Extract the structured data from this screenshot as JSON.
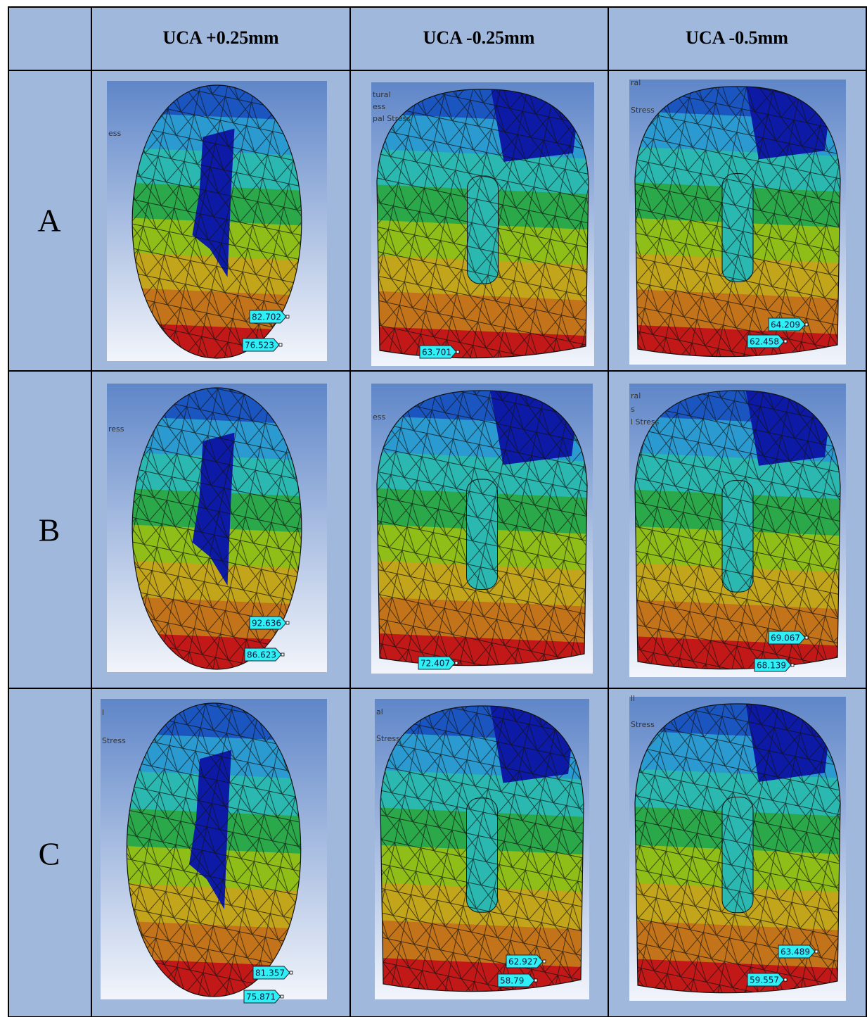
{
  "header": {
    "columns": [
      "UCA +0.25mm",
      "UCA -0.25mm",
      "UCA -0.5mm"
    ]
  },
  "rows": [
    {
      "label": "A",
      "cells": [
        {
          "legend": [
            "ess"
          ],
          "labels": [
            "82.702",
            "76.523"
          ]
        },
        {
          "legend": [
            "tural",
            "ess",
            "pal Stress"
          ],
          "labels": [
            "63.701"
          ]
        },
        {
          "legend": [
            "ral",
            "Stress"
          ],
          "labels": [
            "64.209",
            "62.458"
          ]
        }
      ]
    },
    {
      "label": "B",
      "cells": [
        {
          "legend": [
            "ress"
          ],
          "labels": [
            "92.636",
            "86.623"
          ]
        },
        {
          "legend": [
            "ess"
          ],
          "labels": [
            "72.407"
          ]
        },
        {
          "legend": [
            "ral",
            "s",
            "l Stress"
          ],
          "labels": [
            "69.067",
            "68.139"
          ]
        }
      ]
    },
    {
      "label": "C",
      "cells": [
        {
          "legend": [
            "l",
            "Stress"
          ],
          "labels": [
            "81.357",
            "75.871"
          ]
        },
        {
          "legend": [
            "al",
            "Stress"
          ],
          "labels": [
            "62.927",
            "58.79"
          ]
        },
        {
          "legend": [
            "ll",
            "Stress"
          ],
          "labels": [
            "63.489",
            "59.557"
          ]
        }
      ]
    }
  ]
}
